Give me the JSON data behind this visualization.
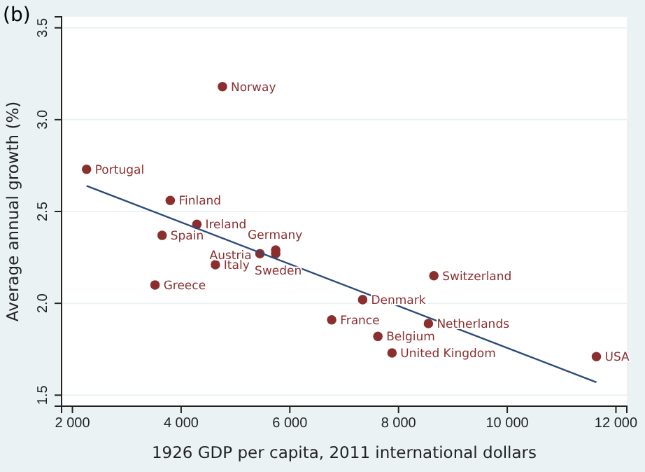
{
  "chart_data": {
    "type": "scatter",
    "title": "(b)",
    "xlabel": "1926 GDP per capita, 2011 international dollars",
    "ylabel": "Average annual growth (%)",
    "xlim": [
      1800,
      12200
    ],
    "ylim": [
      1.44,
      3.56
    ],
    "xticks": [
      {
        "value": 2000,
        "label": "2 000"
      },
      {
        "value": 4000,
        "label": "4 000"
      },
      {
        "value": 6000,
        "label": "6 000"
      },
      {
        "value": 8000,
        "label": "8 000"
      },
      {
        "value": 10000,
        "label": "10 000"
      },
      {
        "value": 12000,
        "label": "12 000"
      }
    ],
    "yticks": [
      1.5,
      {
        "value": 2.0,
        "label": "2.0"
      },
      2.5,
      {
        "value": 3.0,
        "label": "3.0"
      },
      3.5
    ],
    "grid": "y",
    "marker": "circle",
    "series": [
      {
        "color": "#8b2e2e",
        "x": [
          4760,
          2260,
          3800,
          4290,
          3650,
          5740,
          5450,
          5740,
          4630,
          3520,
          8650,
          7340,
          6770,
          8550,
          7620,
          7880,
          11640
        ],
        "values": [
          3.18,
          2.73,
          2.56,
          2.43,
          2.37,
          2.29,
          2.27,
          2.27,
          2.21,
          2.1,
          2.15,
          2.02,
          1.91,
          1.89,
          1.82,
          1.73,
          1.71
        ]
      },
      {
        "type": "line",
        "marker": "none",
        "color": "#2b4a78",
        "x": [
          2260,
          11640
        ],
        "values": [
          2.64,
          1.57
        ]
      }
    ],
    "annotations": [
      {
        "text": "Norway",
        "x": 4760,
        "y": 3.18
      },
      {
        "text": "Portugal",
        "x": 2260,
        "y": 2.73
      },
      {
        "text": "Finland",
        "x": 3800,
        "y": 2.56
      },
      {
        "text": "Ireland",
        "x": 4290,
        "y": 2.43
      },
      {
        "text": "Spain",
        "x": 3650,
        "y": 2.37
      },
      {
        "text": "Germany",
        "x": 5740,
        "y": 2.29
      },
      {
        "text": "Austria",
        "x": 5450,
        "y": 2.27
      },
      {
        "text": "Sweden",
        "x": 5740,
        "y": 2.27
      },
      {
        "text": "Italy",
        "x": 4630,
        "y": 2.21
      },
      {
        "text": "Greece",
        "x": 3520,
        "y": 2.1
      },
      {
        "text": "Switzerland",
        "x": 8650,
        "y": 2.15
      },
      {
        "text": "Denmark",
        "x": 7340,
        "y": 2.02
      },
      {
        "text": "France",
        "x": 6770,
        "y": 1.91
      },
      {
        "text": "Netherlands",
        "x": 8550,
        "y": 1.89
      },
      {
        "text": "Belgium",
        "x": 7620,
        "y": 1.82
      },
      {
        "text": "United Kingdom",
        "x": 7880,
        "y": 1.73
      },
      {
        "text": "USA",
        "x": 11640,
        "y": 1.71
      }
    ]
  }
}
